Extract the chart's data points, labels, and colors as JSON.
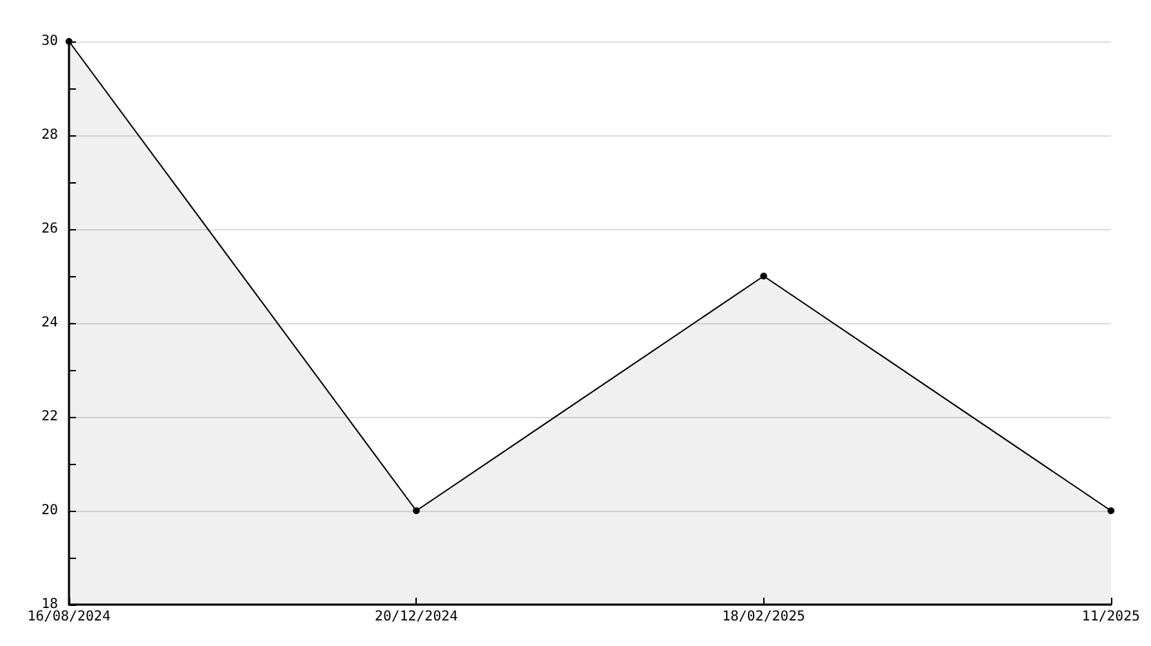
{
  "chart_data": {
    "type": "area",
    "categories": [
      "16/08/2024",
      "20/12/2024",
      "18/02/2025",
      "11/2025"
    ],
    "series": [
      {
        "color": "#000000",
        "values": [
          30,
          20,
          25,
          20
        ]
      }
    ],
    "ylim": [
      18,
      30
    ],
    "yticks": [
      18,
      {
        "value": 19,
        "label": null
      },
      20,
      {
        "value": 21,
        "label": null
      },
      22,
      {
        "value": 23,
        "label": null
      },
      24,
      {
        "value": 25,
        "label": null
      },
      26,
      {
        "value": 27,
        "label": null
      },
      28,
      {
        "value": 29,
        "label": null
      },
      30
    ],
    "grid": "y",
    "marker": "circle"
  }
}
